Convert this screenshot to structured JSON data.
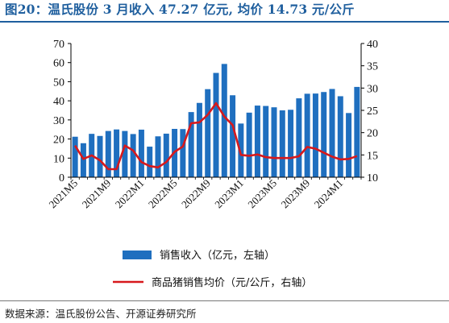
{
  "header": {
    "title": "图20：温氏股份 3 月收入 47.27 亿元, 均价 14.73 元/公斤"
  },
  "footer": {
    "source": "数据来源：温氏股份公告、开源证券研究所"
  },
  "colors": {
    "bar": "#1f6fbf",
    "line": "#d7191c",
    "title": "#1f5f9e",
    "axis": "#000000"
  },
  "chart_data": {
    "type": "bar",
    "x": [
      "2021M5",
      "2021M6",
      "2021M7",
      "2021M8",
      "2021M9",
      "2021M10",
      "2021M11",
      "2021M12",
      "2022M1",
      "2022M2",
      "2022M3",
      "2022M4",
      "2022M5",
      "2022M6",
      "2022M7",
      "2022M8",
      "2022M9",
      "2022M10",
      "2022M11",
      "2022M12",
      "2023M1",
      "2023M2",
      "2023M3",
      "2023M4",
      "2023M5",
      "2023M6",
      "2023M7",
      "2023M8",
      "2023M9",
      "2023M10",
      "2023M11",
      "2023M12",
      "2024M1",
      "2024M2",
      "2024M3"
    ],
    "x_tick_labels": [
      "2021M5",
      "2021M9",
      "2022M1",
      "2022M5",
      "2022M9",
      "2023M1",
      "2023M5",
      "2023M9",
      "2024M1"
    ],
    "x_tick_indices": [
      0,
      4,
      8,
      12,
      16,
      20,
      24,
      28,
      32
    ],
    "series": [
      {
        "name": "销售收入（亿元，左轴）",
        "type": "bar",
        "axis": "left",
        "values": [
          21.2,
          17.8,
          22.7,
          21.6,
          24.2,
          25.0,
          24.2,
          22.6,
          24.9,
          16.0,
          21.4,
          22.8,
          25.3,
          25.2,
          34.1,
          38.9,
          46.1,
          54.6,
          59.3,
          42.9,
          28.1,
          33.8,
          37.5,
          37.3,
          36.6,
          35.0,
          35.3,
          41.3,
          43.7,
          43.8,
          44.6,
          46.2,
          42.4,
          33.6,
          47.27
        ]
      },
      {
        "name": "商品猪销售均价（元/公斤，右轴）",
        "type": "line",
        "axis": "right",
        "values": [
          17.1,
          14.1,
          14.9,
          13.8,
          11.8,
          11.8,
          17.1,
          16.0,
          13.4,
          12.5,
          12.2,
          13.4,
          15.7,
          16.9,
          22.1,
          22.3,
          24.0,
          26.6,
          23.6,
          21.7,
          15.0,
          14.8,
          15.1,
          14.5,
          14.3,
          14.3,
          14.3,
          14.7,
          16.8,
          16.4,
          15.5,
          14.6,
          14.0,
          14.1,
          14.73
        ]
      }
    ],
    "y_left": {
      "min": 0,
      "max": 70,
      "ticks": [
        0,
        10,
        20,
        30,
        40,
        50,
        60,
        70
      ]
    },
    "y_right": {
      "min": 10,
      "max": 40,
      "ticks": [
        10,
        15,
        20,
        25,
        30,
        35,
        40
      ]
    },
    "legend_position": "bottom-center",
    "grid": false
  }
}
